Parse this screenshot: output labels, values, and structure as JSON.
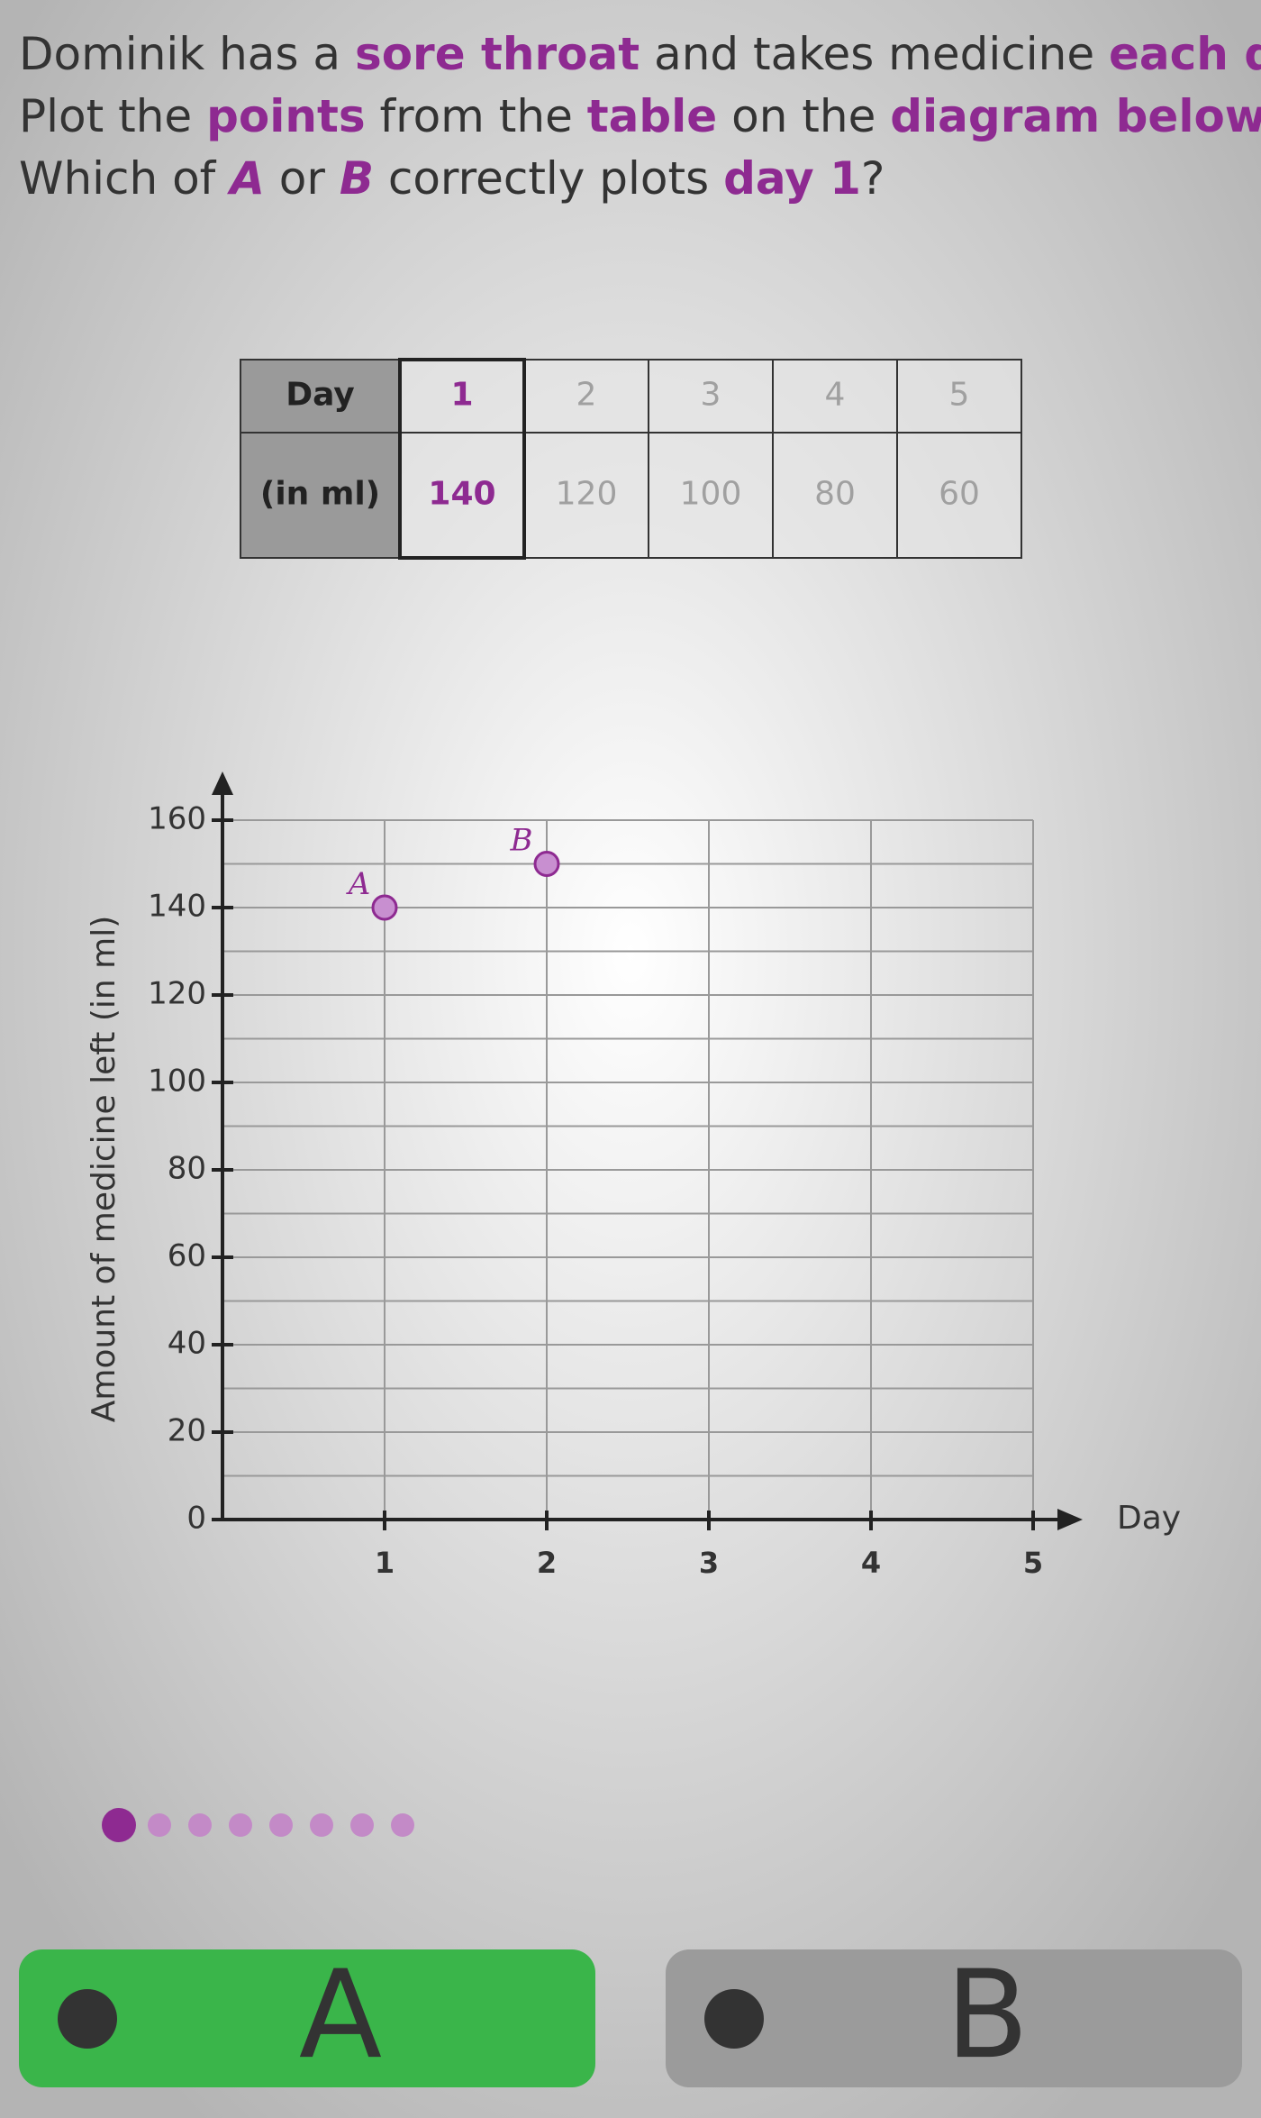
{
  "question": {
    "lines": [
      [
        {
          "text": "Dominik has a ",
          "style": "plain"
        },
        {
          "text": "sore throat",
          "style": "emphasis"
        },
        {
          "text": " and takes medicine ",
          "style": "plain"
        },
        {
          "text": "each day",
          "style": "emphasis"
        },
        {
          "text": ".",
          "style": "plain"
        }
      ],
      [
        {
          "text": "Plot the ",
          "style": "plain"
        },
        {
          "text": "points",
          "style": "emphasis"
        },
        {
          "text": " from the ",
          "style": "plain"
        },
        {
          "text": "table",
          "style": "emphasis"
        },
        {
          "text": " on the ",
          "style": "plain"
        },
        {
          "text": "diagram below",
          "style": "emphasis"
        },
        {
          "text": ".",
          "style": "plain"
        }
      ],
      [
        {
          "text": "Which of ",
          "style": "plain"
        },
        {
          "text": "A",
          "style": "emphasis-italic"
        },
        {
          "text": " or ",
          "style": "plain"
        },
        {
          "text": "B",
          "style": "emphasis-italic"
        },
        {
          "text": " correctly plots ",
          "style": "plain"
        },
        {
          "text": "day 1",
          "style": "emphasis"
        },
        {
          "text": "?",
          "style": "plain"
        }
      ]
    ]
  },
  "table": {
    "rows": [
      [
        "Day",
        1,
        2,
        3,
        4,
        5
      ],
      [
        "(in ml)",
        140,
        120,
        100,
        80,
        60
      ]
    ],
    "highlight_column": 1
  },
  "chart_data": {
    "type": "scatter",
    "x_label": "Day",
    "y_label": "Amount of medicine left (in ml)",
    "xlim": [
      0,
      5
    ],
    "ylim": [
      0,
      160
    ],
    "xticks": [
      1,
      2,
      3,
      4,
      5
    ],
    "yticks": [
      0,
      20,
      40,
      60,
      80,
      100,
      120,
      140,
      160
    ],
    "ygrid": [
      10,
      20,
      30,
      40,
      50,
      60,
      70,
      80,
      90,
      100,
      110,
      120,
      130,
      140,
      150,
      160
    ],
    "series": [
      {
        "name": "A",
        "color": "#c88fd0",
        "x": [
          1
        ],
        "values": [
          140
        ]
      },
      {
        "name": "B",
        "color": "#c88fd0",
        "x": [
          2
        ],
        "values": [
          150
        ]
      }
    ]
  },
  "progress": {
    "steps": 8,
    "current": 1
  },
  "buttons": [
    {
      "label": "A",
      "color": "#3ab54a"
    },
    {
      "label": "B",
      "color": "#9b9b9b"
    }
  ]
}
